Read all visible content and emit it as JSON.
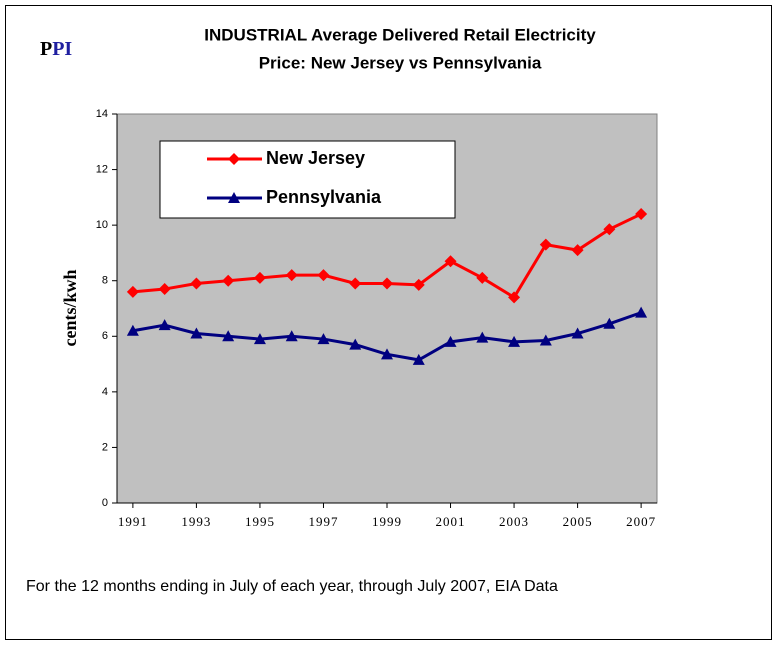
{
  "logo": [
    "P",
    "PI"
  ],
  "chart_data": {
    "type": "line",
    "title": [
      "INDUSTRIAL Average Delivered Retail Electricity",
      "Price: New Jersey vs Pennsylvania"
    ],
    "y_label": "cents/kwh",
    "footnote": "For the 12 months ending in July of each year, through July 2007, EIA Data",
    "x": [
      1991,
      1992,
      1993,
      1994,
      1995,
      1996,
      1997,
      1998,
      1999,
      2000,
      2001,
      2002,
      2003,
      2004,
      2005,
      2006,
      2007
    ],
    "xlim": [
      1990.5,
      2007.5
    ],
    "xticks": [
      1991,
      1993,
      1995,
      1997,
      1999,
      2001,
      2003,
      2005,
      2007
    ],
    "ylim": [
      0,
      14
    ],
    "yticks": [
      0,
      2,
      4,
      6,
      8,
      10,
      12,
      14
    ],
    "series": [
      {
        "name": "New Jersey",
        "color": "#ff0000",
        "marker": "diamond",
        "values": [
          7.6,
          7.7,
          7.9,
          8.0,
          8.1,
          8.2,
          8.2,
          7.9,
          7.9,
          7.85,
          8.7,
          8.1,
          7.4,
          9.3,
          9.1,
          9.85,
          10.4
        ]
      },
      {
        "name": "Pennsylvania",
        "color": "#000080",
        "marker": "triangle",
        "values": [
          6.2,
          6.4,
          6.1,
          6.0,
          5.9,
          6.0,
          5.9,
          5.7,
          5.35,
          5.15,
          5.8,
          5.95,
          5.8,
          5.85,
          6.1,
          6.45,
          6.85
        ]
      }
    ]
  }
}
